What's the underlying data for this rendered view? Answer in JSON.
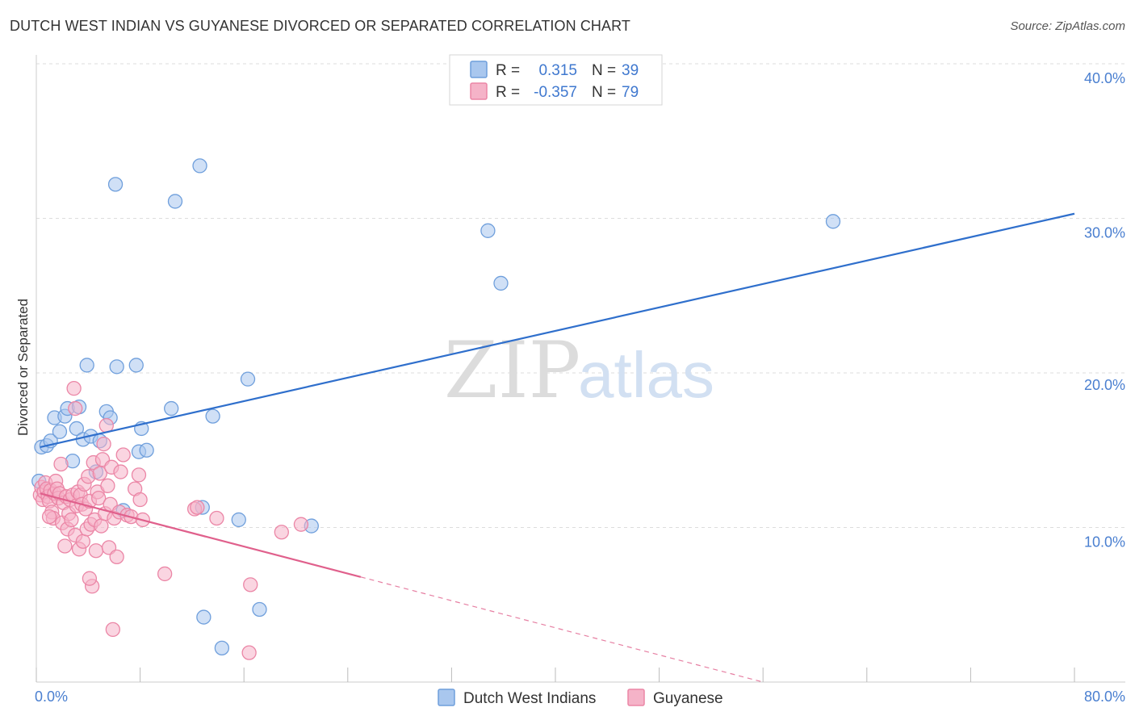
{
  "title": "DUTCH WEST INDIAN VS GUYANESE DIVORCED OR SEPARATED CORRELATION CHART",
  "source": "Source: ZipAtlas.com",
  "watermark": {
    "zip": "ZIP",
    "atlas": "atlas"
  },
  "colors": {
    "blue_fill": "#a9c7ee",
    "blue_stroke": "#6f9fdc",
    "blue_line": "#2f6fcc",
    "pink_fill": "#f5b3c8",
    "pink_stroke": "#eb86a6",
    "pink_line": "#e0608c",
    "grid": "#dddddd",
    "axis_text": "#4a7fd0"
  },
  "legend": {
    "rows": [
      {
        "r_label": "R =",
        "r_value": "0.315",
        "n_label": "N =",
        "n_value": "39"
      },
      {
        "r_label": "R =",
        "r_value": "-0.357",
        "n_label": "N =",
        "n_value": "79"
      }
    ]
  },
  "chart_data": {
    "type": "scatter",
    "xlabel": "",
    "ylabel": "Divorced or Separated",
    "xlim": [
      0,
      80
    ],
    "ylim": [
      0,
      40
    ],
    "x_tick_labels": {
      "min": "0.0%",
      "max": "80.0%"
    },
    "y_ticks": [
      {
        "value": 10,
        "label": "10.0%"
      },
      {
        "value": 20,
        "label": "20.0%"
      },
      {
        "value": 30,
        "label": "30.0%"
      },
      {
        "value": 40,
        "label": "40.0%"
      }
    ],
    "grid": true,
    "legend_placement": "top-center",
    "series": [
      {
        "name": "Dutch West Indians",
        "R": 0.315,
        "N": 39,
        "trend": {
          "x": [
            0.3,
            80
          ],
          "y": [
            15.2,
            30.3
          ]
        },
        "points": [
          [
            0.2,
            13.0
          ],
          [
            0.4,
            15.2
          ],
          [
            0.8,
            15.3
          ],
          [
            1.1,
            15.6
          ],
          [
            1.4,
            17.1
          ],
          [
            1.8,
            16.2
          ],
          [
            2.2,
            17.2
          ],
          [
            2.4,
            17.7
          ],
          [
            2.8,
            14.3
          ],
          [
            3.1,
            16.4
          ],
          [
            3.3,
            17.8
          ],
          [
            3.6,
            15.7
          ],
          [
            3.9,
            20.5
          ],
          [
            4.2,
            15.9
          ],
          [
            4.6,
            13.6
          ],
          [
            4.9,
            15.6
          ],
          [
            5.4,
            17.5
          ],
          [
            5.7,
            17.1
          ],
          [
            6.1,
            32.2
          ],
          [
            6.2,
            20.4
          ],
          [
            6.7,
            11.1
          ],
          [
            7.7,
            20.5
          ],
          [
            7.9,
            14.9
          ],
          [
            8.1,
            16.4
          ],
          [
            8.5,
            15.0
          ],
          [
            10.4,
            17.7
          ],
          [
            10.7,
            31.1
          ],
          [
            12.6,
            33.4
          ],
          [
            12.8,
            11.3
          ],
          [
            12.9,
            4.2
          ],
          [
            13.6,
            17.2
          ],
          [
            14.3,
            2.2
          ],
          [
            15.6,
            10.5
          ],
          [
            16.3,
            19.6
          ],
          [
            17.2,
            4.7
          ],
          [
            21.2,
            10.1
          ],
          [
            34.8,
            29.2
          ],
          [
            35.8,
            25.8
          ],
          [
            61.4,
            29.8
          ]
        ]
      },
      {
        "name": "Guyanese",
        "R": -0.357,
        "N": 79,
        "trend": {
          "x": [
            0.3,
            25.0
          ],
          "y": [
            12.2,
            6.8
          ]
        },
        "trend_dashed": {
          "x": [
            25.0,
            56.0
          ],
          "y": [
            6.8,
            0.0
          ]
        },
        "points": [
          [
            0.3,
            12.1
          ],
          [
            0.4,
            12.6
          ],
          [
            0.5,
            11.8
          ],
          [
            0.6,
            12.3
          ],
          [
            0.7,
            12.9
          ],
          [
            0.8,
            12.5
          ],
          [
            0.9,
            12.0
          ],
          [
            1.0,
            11.7
          ],
          [
            1.1,
            12.4
          ],
          [
            1.2,
            11.0
          ],
          [
            1.3,
            10.6
          ],
          [
            1.4,
            12.2
          ],
          [
            1.5,
            13.0
          ],
          [
            1.6,
            12.5
          ],
          [
            1.7,
            11.9
          ],
          [
            1.8,
            12.2
          ],
          [
            1.9,
            14.1
          ],
          [
            2.0,
            10.3
          ],
          [
            2.1,
            11.6
          ],
          [
            2.2,
            8.8
          ],
          [
            2.3,
            12.0
          ],
          [
            2.4,
            9.9
          ],
          [
            2.5,
            10.9
          ],
          [
            2.6,
            11.8
          ],
          [
            2.7,
            10.5
          ],
          [
            2.8,
            12.1
          ],
          [
            2.9,
            19.0
          ],
          [
            3.0,
            9.5
          ],
          [
            3.1,
            11.4
          ],
          [
            3.2,
            12.3
          ],
          [
            3.3,
            8.6
          ],
          [
            3.4,
            12.1
          ],
          [
            3.5,
            11.5
          ],
          [
            3.6,
            9.1
          ],
          [
            3.7,
            12.8
          ],
          [
            3.8,
            11.2
          ],
          [
            3.9,
            9.9
          ],
          [
            4.0,
            13.3
          ],
          [
            4.1,
            11.7
          ],
          [
            4.2,
            10.2
          ],
          [
            4.3,
            6.2
          ],
          [
            4.4,
            14.2
          ],
          [
            4.5,
            10.5
          ],
          [
            4.6,
            8.5
          ],
          [
            4.7,
            12.3
          ],
          [
            4.8,
            11.9
          ],
          [
            4.9,
            13.5
          ],
          [
            5.0,
            10.1
          ],
          [
            5.1,
            14.4
          ],
          [
            5.2,
            15.4
          ],
          [
            5.3,
            10.9
          ],
          [
            5.4,
            16.6
          ],
          [
            5.5,
            12.7
          ],
          [
            5.6,
            8.7
          ],
          [
            5.7,
            11.5
          ],
          [
            5.8,
            13.9
          ],
          [
            5.9,
            3.4
          ],
          [
            6.0,
            10.6
          ],
          [
            6.2,
            8.1
          ],
          [
            6.4,
            11.0
          ],
          [
            6.5,
            13.6
          ],
          [
            6.7,
            14.7
          ],
          [
            7.0,
            10.8
          ],
          [
            7.3,
            10.7
          ],
          [
            7.6,
            12.5
          ],
          [
            7.9,
            13.4
          ],
          [
            8.0,
            11.8
          ],
          [
            8.2,
            10.5
          ],
          [
            9.9,
            7.0
          ],
          [
            12.2,
            11.2
          ],
          [
            12.4,
            11.3
          ],
          [
            13.9,
            10.6
          ],
          [
            16.5,
            6.3
          ],
          [
            16.4,
            1.9
          ],
          [
            18.9,
            9.7
          ],
          [
            20.4,
            10.2
          ],
          [
            4.1,
            6.7
          ],
          [
            3.0,
            17.7
          ],
          [
            1.0,
            10.7
          ]
        ]
      }
    ]
  }
}
